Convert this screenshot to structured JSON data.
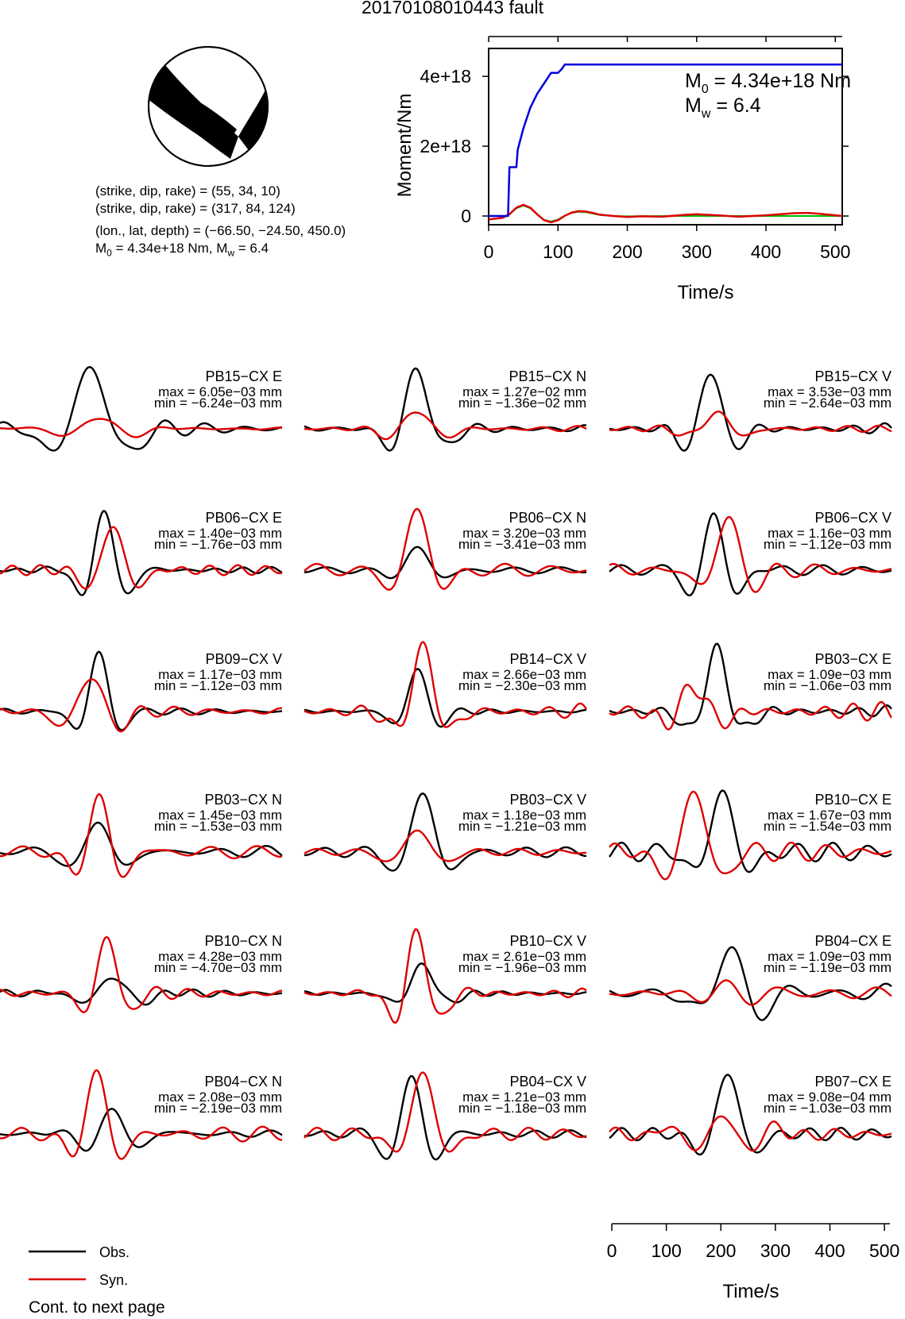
{
  "title": "20170108010443 fault",
  "mechanism": {
    "line1": "(strike, dip, rake) = (55, 34, 10)",
    "line2": "(strike, dip, rake) = (317, 84, 124)",
    "line3": "(lon., lat, depth) = (−66.50, −24.50, 450.0)",
    "m0_text": "M",
    "m0_sub": "0",
    "m0_value": " = 4.34e+18 Nm, M",
    "mw_sub": "w",
    "mw_value": " = 6.4"
  },
  "moment_chart": {
    "type": "line",
    "ylabel": "Moment/Nm",
    "xlabel": "Time/s",
    "xlim": [
      0,
      510
    ],
    "ylim": [
      -250000000000000000,
      4800000000000000000
    ],
    "xticks": [
      "0",
      "100",
      "200",
      "300",
      "400",
      "500"
    ],
    "yticks": [
      "0",
      "2e+18",
      "4e+18"
    ],
    "ytick_values": [
      0,
      2e+18,
      4e+18
    ],
    "annotation_m0": "M",
    "annotation_m0_sub": "0",
    "annotation_m0_value": " = 4.34e+18 Nm",
    "annotation_mw": "M",
    "annotation_mw_sub": "w",
    "annotation_mw_value": " = 6.4",
    "colors": {
      "cumulative": "#0000dd",
      "rate_red": "#dd0000",
      "rate_green": "#00bb00"
    },
    "cumulative_moment": {
      "t": [
        0,
        20,
        28,
        30,
        40,
        42,
        50,
        60,
        70,
        80,
        90,
        100,
        105,
        110,
        510
      ],
      "m": [
        0,
        0,
        0,
        1.4e+18,
        1.4e+18,
        1.9e+18,
        2.5e+18,
        3.1e+18,
        3.5e+18,
        3.8e+18,
        4.1e+18,
        4.1e+18,
        4.2e+18,
        4.34e+18,
        4.34e+18
      ]
    },
    "moment_rate_red": {
      "t": [
        0,
        20,
        30,
        40,
        50,
        60,
        70,
        80,
        90,
        100,
        110,
        120,
        130,
        140,
        150,
        160,
        180,
        200,
        220,
        250,
        280,
        300,
        330,
        360,
        400,
        440,
        460,
        480,
        510
      ],
      "m": [
        -1e+17,
        -5e+16,
        5e+16,
        2.4e+17,
        3.2e+17,
        2.4e+17,
        5e+16,
        -1.2e+17,
        -1.8e+17,
        -1.2e+17,
        1e+16,
        1e+17,
        1.4e+17,
        1.3e+17,
        9e+16,
        4e+16,
        0.0,
        -3e+16,
        -1e+16,
        -2e+16,
        3e+16,
        5e+16,
        2e+16,
        -2e+16,
        2e+16,
        8e+16,
        9e+16,
        6e+16,
        0.0
      ]
    },
    "moment_rate_green": {
      "t": [
        0,
        20,
        30,
        40,
        50,
        60,
        70,
        80,
        90,
        100,
        110,
        120,
        130,
        140,
        150,
        160,
        180,
        200,
        250,
        300,
        400,
        510
      ],
      "m": [
        -1e+17,
        -5e+16,
        5e+16,
        2.2e+17,
        3e+17,
        2.2e+17,
        4e+16,
        -1.1e+17,
        -1.6e+17,
        -1e+17,
        1e+16,
        9e+16,
        1.2e+17,
        1.1e+17,
        7e+16,
        3e+16,
        0.0,
        -1e+16,
        0.0,
        0.0,
        0.0,
        0.0
      ]
    }
  },
  "waveform_panels": [
    {
      "station": "PB15−CX E",
      "max": "max = 6.05e−03 mm",
      "min": "min = −6.24e−03 mm"
    },
    {
      "station": "PB15−CX N",
      "max": "max = 1.27e−02 mm",
      "min": "min = −1.36e−02 mm"
    },
    {
      "station": "PB15−CX V",
      "max": "max = 3.53e−03 mm",
      "min": "min = −2.64e−03 mm"
    },
    {
      "station": "PB06−CX E",
      "max": "max = 1.40e−03 mm",
      "min": "min = −1.76e−03 mm"
    },
    {
      "station": "PB06−CX N",
      "max": "max = 3.20e−03 mm",
      "min": "min = −3.41e−03 mm"
    },
    {
      "station": "PB06−CX V",
      "max": "max = 1.16e−03 mm",
      "min": "min = −1.12e−03 mm"
    },
    {
      "station": "PB09−CX V",
      "max": "max = 1.17e−03 mm",
      "min": "min = −1.12e−03 mm"
    },
    {
      "station": "PB14−CX V",
      "max": "max = 2.66e−03 mm",
      "min": "min = −2.30e−03 mm"
    },
    {
      "station": "PB03−CX E",
      "max": "max = 1.09e−03 mm",
      "min": "min = −1.06e−03 mm"
    },
    {
      "station": "PB03−CX N",
      "max": "max = 1.45e−03 mm",
      "min": "min = −1.53e−03 mm"
    },
    {
      "station": "PB03−CX V",
      "max": "max = 1.18e−03 mm",
      "min": "min = −1.21e−03 mm"
    },
    {
      "station": "PB10−CX E",
      "max": "max = 1.67e−03 mm",
      "min": "min = −1.54e−03 mm"
    },
    {
      "station": "PB10−CX N",
      "max": "max = 4.28e−03 mm",
      "min": "min = −4.70e−03 mm"
    },
    {
      "station": "PB10−CX V",
      "max": "max = 2.61e−03 mm",
      "min": "min = −1.96e−03 mm"
    },
    {
      "station": "PB04−CX E",
      "max": "max = 1.09e−03 mm",
      "min": "min = −1.19e−03 mm"
    },
    {
      "station": "PB04−CX N",
      "max": "max = 2.08e−03 mm",
      "min": "min = −2.19e−03 mm"
    },
    {
      "station": "PB04−CX V",
      "max": "max = 1.21e−03 mm",
      "min": "min = −1.18e−03 mm"
    },
    {
      "station": "PB07−CX E",
      "max": "max = 9.08e−04 mm",
      "min": "min = −1.03e−03 mm"
    }
  ],
  "waveform_axis": {
    "xlabel": "Time/s",
    "xlim": [
      0,
      510
    ],
    "xticks": [
      "0",
      "100",
      "200",
      "300",
      "400",
      "500"
    ]
  },
  "legend": {
    "obs_label": "Obs.",
    "syn_label": "Syn.",
    "obs_color": "#000000",
    "syn_color": "#dd0000"
  },
  "footer_note": "Cont. to next page",
  "chart_data": [
    {
      "type": "line",
      "title": "20170108010443 fault",
      "xlabel": "Time/s",
      "ylabel": "Moment/Nm",
      "xlim": [
        0,
        510
      ],
      "ylim": [
        -250000000000000000,
        4800000000000000000
      ],
      "series": [
        {
          "t": [
            0,
            20,
            28,
            30,
            40,
            42,
            50,
            60,
            70,
            80,
            90,
            100,
            105,
            110,
            510
          ],
          "m": [
            0,
            0,
            0,
            1.4e+18,
            1.4e+18,
            1.9e+18,
            2.5e+18,
            3.1e+18,
            3.5e+18,
            3.8e+18,
            4.1e+18,
            4.1e+18,
            4.2e+18,
            4.34e+18,
            4.34e+18
          ]
        }
      ]
    },
    {
      "type": "line",
      "xlabel": "Time/s",
      "xlim": [
        0,
        510
      ],
      "series": [
        {
          "name": "Obs."
        },
        {
          "name": "Syn."
        }
      ]
    }
  ]
}
